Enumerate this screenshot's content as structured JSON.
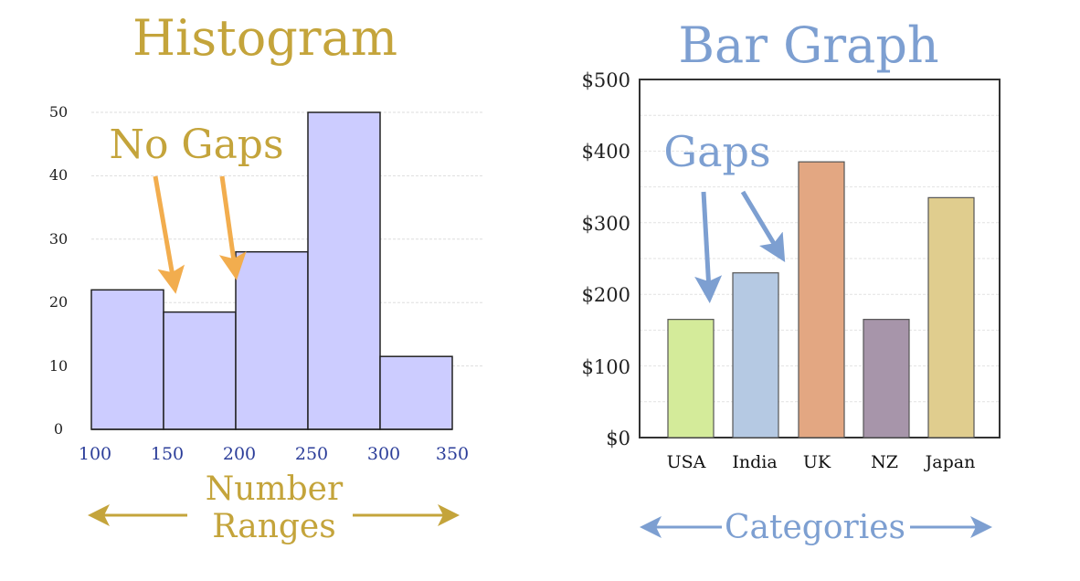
{
  "colors": {
    "gold": "#c4a43b",
    "blue": "#7d9fd1",
    "hist_fill": "#ccccff",
    "orange_arrow": "#f2ad4e",
    "tick_blue": "#2b3d99"
  },
  "histogram": {
    "title": "Histogram",
    "callout": "No Gaps",
    "xlabel_line1": "Number",
    "xlabel_line2": "Ranges",
    "y_ticks": [
      "0",
      "10",
      "20",
      "30",
      "40",
      "50"
    ],
    "x_ticks": [
      "100",
      "150",
      "200",
      "250",
      "300",
      "350"
    ]
  },
  "bargraph": {
    "title": "Bar Graph",
    "callout": "Gaps",
    "xlabel": "Categories",
    "y_ticks": [
      "$0",
      "$100",
      "$200",
      "$300",
      "$400",
      "$500"
    ]
  },
  "chart_data": [
    {
      "type": "bar",
      "title": "Histogram",
      "xlabel": "Number Ranges",
      "ylabel": "",
      "bins": [
        [
          100,
          150
        ],
        [
          150,
          200
        ],
        [
          200,
          250
        ],
        [
          250,
          300
        ],
        [
          300,
          350
        ]
      ],
      "values": [
        22,
        18.5,
        28,
        50,
        11.5
      ],
      "xlim": [
        100,
        350
      ],
      "ylim": [
        0,
        50
      ],
      "grid": true
    },
    {
      "type": "bar",
      "title": "Bar Graph",
      "xlabel": "Categories",
      "ylabel": "",
      "categories": [
        "USA",
        "India",
        "UK",
        "NZ",
        "Japan"
      ],
      "values": [
        165,
        230,
        385,
        165,
        335
      ],
      "colors": [
        "#d4eb9a",
        "#b5c9e3",
        "#e3a782",
        "#a795aa",
        "#e0cd8e"
      ],
      "ylim": [
        0,
        500
      ],
      "grid": true
    }
  ]
}
